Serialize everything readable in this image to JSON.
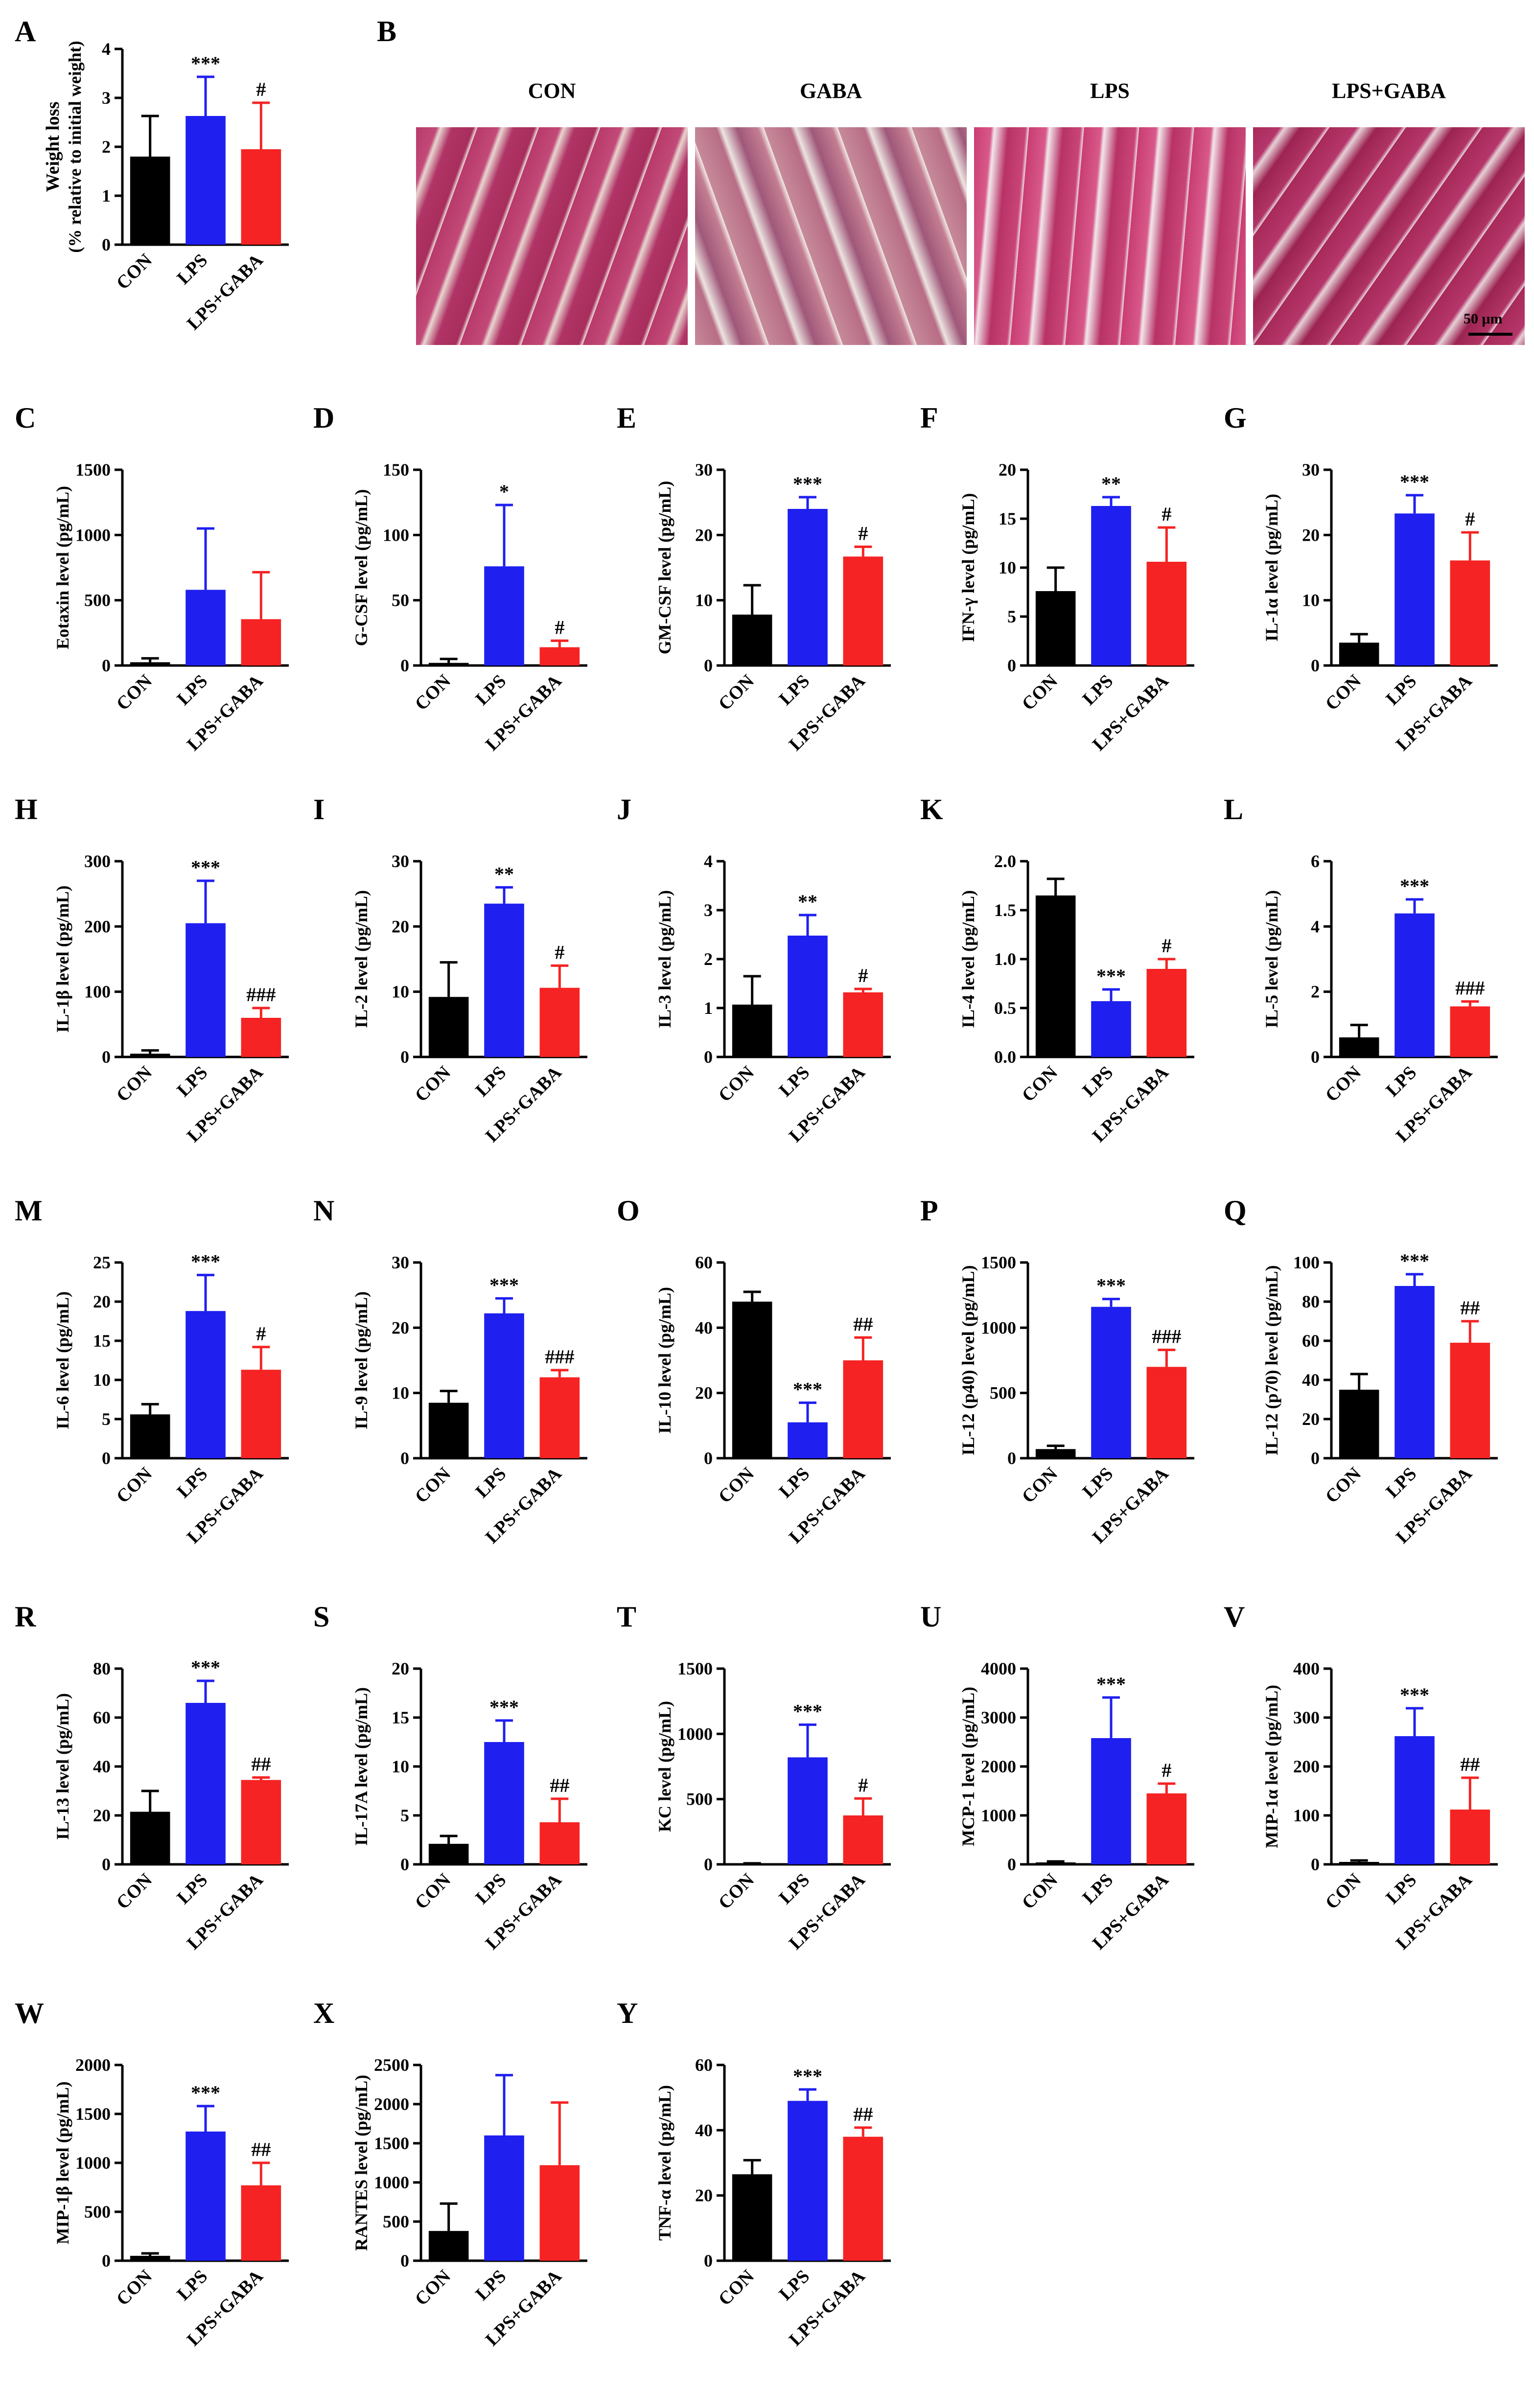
{
  "colors": {
    "CON": "#000000",
    "LPS": "#1f1ff0",
    "LPS+GABA": "#f52323"
  },
  "histology": {
    "letter": "B",
    "panels": [
      {
        "label": "CON"
      },
      {
        "label": "GABA"
      },
      {
        "label": "LPS"
      },
      {
        "label": "LPS+GABA"
      }
    ],
    "scale_bar": "50 μm"
  },
  "chart_data": [
    {
      "id": "A",
      "type": "bar",
      "ylabel": "Weight loss",
      "ylabel2": "(% relative to initial weight)",
      "categories": [
        "CON",
        "LPS",
        "LPS+GABA"
      ],
      "values": [
        1.8,
        2.63,
        1.95
      ],
      "errors": [
        0.83,
        0.8,
        0.95
      ],
      "ylim": [
        0,
        4
      ],
      "yticks": [
        "0",
        "1",
        "2",
        "3",
        "4"
      ],
      "annotations": [
        "",
        "***",
        "#"
      ]
    },
    {
      "id": "C",
      "type": "bar",
      "ylabel": "Eotaxin level (pg/mL)",
      "categories": [
        "CON",
        "LPS",
        "LPS+GABA"
      ],
      "values": [
        25,
        580,
        355
      ],
      "errors": [
        30,
        470,
        360
      ],
      "ylim": [
        0,
        1500
      ],
      "yticks": [
        "0",
        "500",
        "1000",
        "1500"
      ],
      "annotations": [
        "",
        "",
        ""
      ]
    },
    {
      "id": "D",
      "type": "bar",
      "ylabel": "G-CSF level (pg/mL)",
      "categories": [
        "CON",
        "LPS",
        "LPS+GABA"
      ],
      "values": [
        2,
        76,
        14
      ],
      "errors": [
        3,
        47,
        5
      ],
      "ylim": [
        0,
        150
      ],
      "yticks": [
        "0",
        "50",
        "100",
        "150"
      ],
      "annotations": [
        "",
        "*",
        "#"
      ]
    },
    {
      "id": "E",
      "type": "bar",
      "ylabel": "GM-CSF level (pg/mL)",
      "categories": [
        "CON",
        "LPS",
        "LPS+GABA"
      ],
      "values": [
        7.8,
        24,
        16.7
      ],
      "errors": [
        4.5,
        1.8,
        1.5
      ],
      "ylim": [
        0,
        30
      ],
      "yticks": [
        "0",
        "10",
        "20",
        "30"
      ],
      "annotations": [
        "",
        "***",
        "#"
      ]
    },
    {
      "id": "F",
      "type": "bar",
      "ylabel": "IFN-γ level (pg/mL)",
      "categories": [
        "CON",
        "LPS",
        "LPS+GABA"
      ],
      "values": [
        7.6,
        16.3,
        10.6
      ],
      "errors": [
        2.4,
        0.9,
        3.5
      ],
      "ylim": [
        0,
        20
      ],
      "yticks": [
        "0",
        "5",
        "10",
        "15",
        "20"
      ],
      "annotations": [
        "",
        "**",
        "#"
      ]
    },
    {
      "id": "G",
      "type": "bar",
      "ylabel": "IL-1α level (pg/mL)",
      "categories": [
        "CON",
        "LPS",
        "LPS+GABA"
      ],
      "values": [
        3.5,
        23.3,
        16.1
      ],
      "errors": [
        1.3,
        2.8,
        4.3
      ],
      "ylim": [
        0,
        30
      ],
      "yticks": [
        "0",
        "10",
        "20",
        "30"
      ],
      "annotations": [
        "",
        "***",
        "#"
      ]
    },
    {
      "id": "H",
      "type": "bar",
      "ylabel": "IL-1β level (pg/mL)",
      "categories": [
        "CON",
        "LPS",
        "LPS+GABA"
      ],
      "values": [
        5,
        205,
        60
      ],
      "errors": [
        5,
        65,
        15
      ],
      "ylim": [
        0,
        300
      ],
      "yticks": [
        "0",
        "100",
        "200",
        "300"
      ],
      "annotations": [
        "",
        "***",
        "###"
      ]
    },
    {
      "id": "I",
      "type": "bar",
      "ylabel": "IL-2 level (pg/mL)",
      "categories": [
        "CON",
        "LPS",
        "LPS+GABA"
      ],
      "values": [
        9.2,
        23.5,
        10.6
      ],
      "errors": [
        5.3,
        2.5,
        3.4
      ],
      "ylim": [
        0,
        30
      ],
      "yticks": [
        "0",
        "10",
        "20",
        "30"
      ],
      "annotations": [
        "",
        "**",
        "#"
      ]
    },
    {
      "id": "J",
      "type": "bar",
      "ylabel": "IL-3 level (pg/mL)",
      "categories": [
        "CON",
        "LPS",
        "LPS+GABA"
      ],
      "values": [
        1.07,
        2.48,
        1.32
      ],
      "errors": [
        0.58,
        0.42,
        0.07
      ],
      "ylim": [
        0,
        4
      ],
      "yticks": [
        "0",
        "1",
        "2",
        "3",
        "4"
      ],
      "annotations": [
        "",
        "**",
        "#"
      ]
    },
    {
      "id": "K",
      "type": "bar",
      "ylabel": "IL-4 level (pg/mL)",
      "categories": [
        "CON",
        "LPS",
        "LPS+GABA"
      ],
      "values": [
        1.65,
        0.57,
        0.9
      ],
      "errors": [
        0.17,
        0.12,
        0.1
      ],
      "ylim": [
        0,
        2.0
      ],
      "yticks": [
        "0.0",
        "0.5",
        "1.0",
        "1.5",
        "2.0"
      ],
      "annotations": [
        "",
        "***",
        "#"
      ]
    },
    {
      "id": "L",
      "type": "bar",
      "ylabel": "IL-5 level (pg/mL)",
      "categories": [
        "CON",
        "LPS",
        "LPS+GABA"
      ],
      "values": [
        0.6,
        4.4,
        1.55
      ],
      "errors": [
        0.38,
        0.43,
        0.15
      ],
      "ylim": [
        0,
        6
      ],
      "yticks": [
        "0",
        "2",
        "4",
        "6"
      ],
      "annotations": [
        "",
        "***",
        "###"
      ]
    },
    {
      "id": "M",
      "type": "bar",
      "ylabel": "IL-6 level (pg/mL)",
      "categories": [
        "CON",
        "LPS",
        "LPS+GABA"
      ],
      "values": [
        5.6,
        18.8,
        11.3
      ],
      "errors": [
        1.3,
        4.6,
        2.9
      ],
      "ylim": [
        0,
        25
      ],
      "yticks": [
        "0",
        "5",
        "10",
        "15",
        "20",
        "25"
      ],
      "annotations": [
        "",
        "***",
        "#"
      ]
    },
    {
      "id": "N",
      "type": "bar",
      "ylabel": "IL-9 level (pg/mL)",
      "categories": [
        "CON",
        "LPS",
        "LPS+GABA"
      ],
      "values": [
        8.5,
        22.2,
        12.4
      ],
      "errors": [
        1.8,
        2.3,
        1.1
      ],
      "ylim": [
        0,
        30
      ],
      "yticks": [
        "0",
        "10",
        "20",
        "30"
      ],
      "annotations": [
        "",
        "***",
        "###"
      ]
    },
    {
      "id": "O",
      "type": "bar",
      "ylabel": "IL-10 level (pg/mL)",
      "categories": [
        "CON",
        "LPS",
        "LPS+GABA"
      ],
      "values": [
        48,
        11,
        30
      ],
      "errors": [
        3,
        6,
        7
      ],
      "ylim": [
        0,
        60
      ],
      "yticks": [
        "0",
        "20",
        "40",
        "60"
      ],
      "annotations": [
        "",
        "***",
        "##"
      ]
    },
    {
      "id": "P",
      "type": "bar",
      "ylabel": "IL-12 (p40) level (pg/mL)",
      "categories": [
        "CON",
        "LPS",
        "LPS+GABA"
      ],
      "values": [
        70,
        1160,
        700
      ],
      "errors": [
        25,
        60,
        130
      ],
      "ylim": [
        0,
        1500
      ],
      "yticks": [
        "0",
        "500",
        "1000",
        "1500"
      ],
      "annotations": [
        "",
        "***",
        "###"
      ]
    },
    {
      "id": "Q",
      "type": "bar",
      "ylabel": "IL-12 (p70) level (pg/mL)",
      "categories": [
        "CON",
        "LPS",
        "LPS+GABA"
      ],
      "values": [
        35,
        88,
        59
      ],
      "errors": [
        8,
        6,
        11
      ],
      "ylim": [
        0,
        100
      ],
      "yticks": [
        "0",
        "20",
        "40",
        "60",
        "80",
        "100"
      ],
      "annotations": [
        "",
        "***",
        "##"
      ]
    },
    {
      "id": "R",
      "type": "bar",
      "ylabel": "IL-13 level (pg/mL)",
      "categories": [
        "CON",
        "LPS",
        "LPS+GABA"
      ],
      "values": [
        21.5,
        66,
        34.5
      ],
      "errors": [
        8.5,
        9,
        1
      ],
      "ylim": [
        0,
        80
      ],
      "yticks": [
        "0",
        "20",
        "40",
        "60",
        "80"
      ],
      "annotations": [
        "",
        "***",
        "##"
      ]
    },
    {
      "id": "S",
      "type": "bar",
      "ylabel": "IL-17A level (pg/mL)",
      "categories": [
        "CON",
        "LPS",
        "LPS+GABA"
      ],
      "values": [
        2.1,
        12.5,
        4.3
      ],
      "errors": [
        0.8,
        2.2,
        2.4
      ],
      "ylim": [
        0,
        20
      ],
      "yticks": [
        "0",
        "5",
        "10",
        "15",
        "20"
      ],
      "annotations": [
        "",
        "***",
        "##"
      ]
    },
    {
      "id": "T",
      "type": "bar",
      "ylabel": "KC level (pg/mL)",
      "categories": [
        "CON",
        "LPS",
        "LPS+GABA"
      ],
      "values": [
        5,
        820,
        375
      ],
      "errors": [
        3,
        250,
        130
      ],
      "ylim": [
        0,
        1500
      ],
      "yticks": [
        "0",
        "500",
        "1000",
        "1500"
      ],
      "annotations": [
        "",
        "***",
        "#"
      ]
    },
    {
      "id": "U",
      "type": "bar",
      "ylabel": "MCP-1 level (pg/mL)",
      "categories": [
        "CON",
        "LPS",
        "LPS+GABA"
      ],
      "values": [
        40,
        2580,
        1450
      ],
      "errors": [
        20,
        830,
        200
      ],
      "ylim": [
        0,
        4000
      ],
      "yticks": [
        "0",
        "1000",
        "2000",
        "3000",
        "4000"
      ],
      "annotations": [
        "",
        "***",
        "#"
      ]
    },
    {
      "id": "V",
      "type": "bar",
      "ylabel": "MIP-1α level (pg/mL)",
      "categories": [
        "CON",
        "LPS",
        "LPS+GABA"
      ],
      "values": [
        5,
        262,
        112
      ],
      "errors": [
        3,
        57,
        65
      ],
      "ylim": [
        0,
        400
      ],
      "yticks": [
        "0",
        "100",
        "200",
        "300",
        "400"
      ],
      "annotations": [
        "",
        "***",
        "##"
      ]
    },
    {
      "id": "W",
      "type": "bar",
      "ylabel": "MIP-1β level (pg/mL)",
      "categories": [
        "CON",
        "LPS",
        "LPS+GABA"
      ],
      "values": [
        50,
        1320,
        770
      ],
      "errors": [
        25,
        260,
        230
      ],
      "ylim": [
        0,
        2000
      ],
      "yticks": [
        "0",
        "500",
        "1000",
        "1500",
        "2000"
      ],
      "annotations": [
        "",
        "***",
        "##"
      ]
    },
    {
      "id": "X",
      "type": "bar",
      "ylabel": "RANTES level (pg/mL)",
      "categories": [
        "CON",
        "LPS",
        "LPS+GABA"
      ],
      "values": [
        380,
        1600,
        1220
      ],
      "errors": [
        350,
        770,
        800
      ],
      "ylim": [
        0,
        2500
      ],
      "yticks": [
        "0",
        "500",
        "1000",
        "1500",
        "2000",
        "2500"
      ],
      "annotations": [
        "",
        "",
        ""
      ]
    },
    {
      "id": "Y",
      "type": "bar",
      "ylabel": "TNF-α level (pg/mL)",
      "categories": [
        "CON",
        "LPS",
        "LPS+GABA"
      ],
      "values": [
        26.5,
        49,
        38
      ],
      "errors": [
        4.3,
        3.5,
        2.8
      ],
      "ylim": [
        0,
        60
      ],
      "yticks": [
        "0",
        "20",
        "40",
        "60"
      ],
      "annotations": [
        "",
        "***",
        "##"
      ]
    }
  ]
}
